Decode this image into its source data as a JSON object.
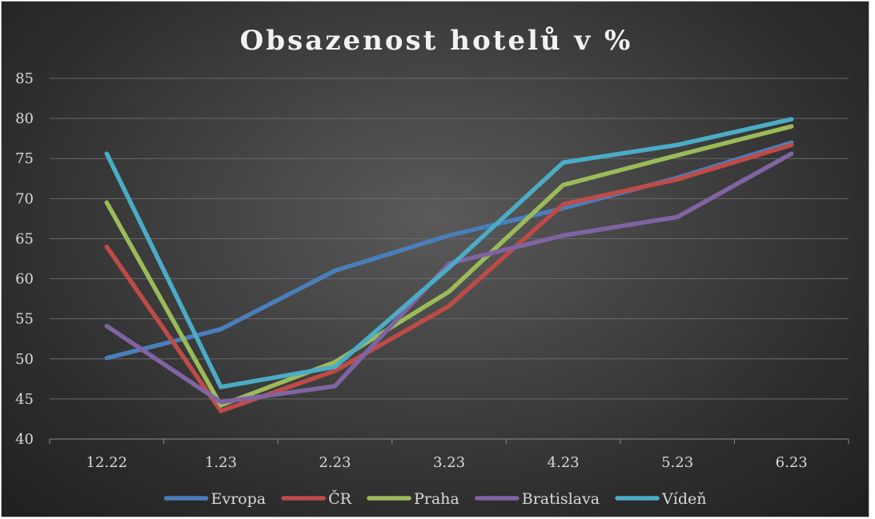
{
  "chart_data": {
    "type": "line",
    "title": "Obsazenost hotelů v %",
    "xlabel": "",
    "ylabel": "",
    "categories": [
      "12.22",
      "1.23",
      "2.23",
      "3.23",
      "4.23",
      "5.23",
      "6.23"
    ],
    "ylim": [
      40,
      85
    ],
    "yticks": [
      "40",
      "45",
      "50",
      "55",
      "60",
      "65",
      "70",
      "75",
      "80",
      "85"
    ],
    "grid": true,
    "legend_position": "bottom",
    "series": [
      {
        "name": "Evropa",
        "color": "#4a7ebb",
        "values": [
          50.1,
          53.7,
          61.0,
          65.4,
          68.8,
          72.6,
          77.0
        ]
      },
      {
        "name": "ČR",
        "color": "#be4b48",
        "values": [
          64.0,
          43.5,
          48.5,
          56.6,
          69.3,
          72.4,
          76.7
        ]
      },
      {
        "name": "Praha",
        "color": "#9bbb59",
        "values": [
          69.5,
          44.2,
          49.6,
          58.4,
          71.7,
          75.4,
          79.0
        ]
      },
      {
        "name": "Bratislava",
        "color": "#8064a2",
        "values": [
          54.1,
          44.6,
          46.6,
          61.9,
          65.4,
          67.7,
          75.6
        ]
      },
      {
        "name": "Vídeň",
        "color": "#4bacc6",
        "values": [
          75.6,
          46.5,
          49.0,
          61.4,
          74.5,
          76.7,
          79.9
        ]
      }
    ]
  }
}
